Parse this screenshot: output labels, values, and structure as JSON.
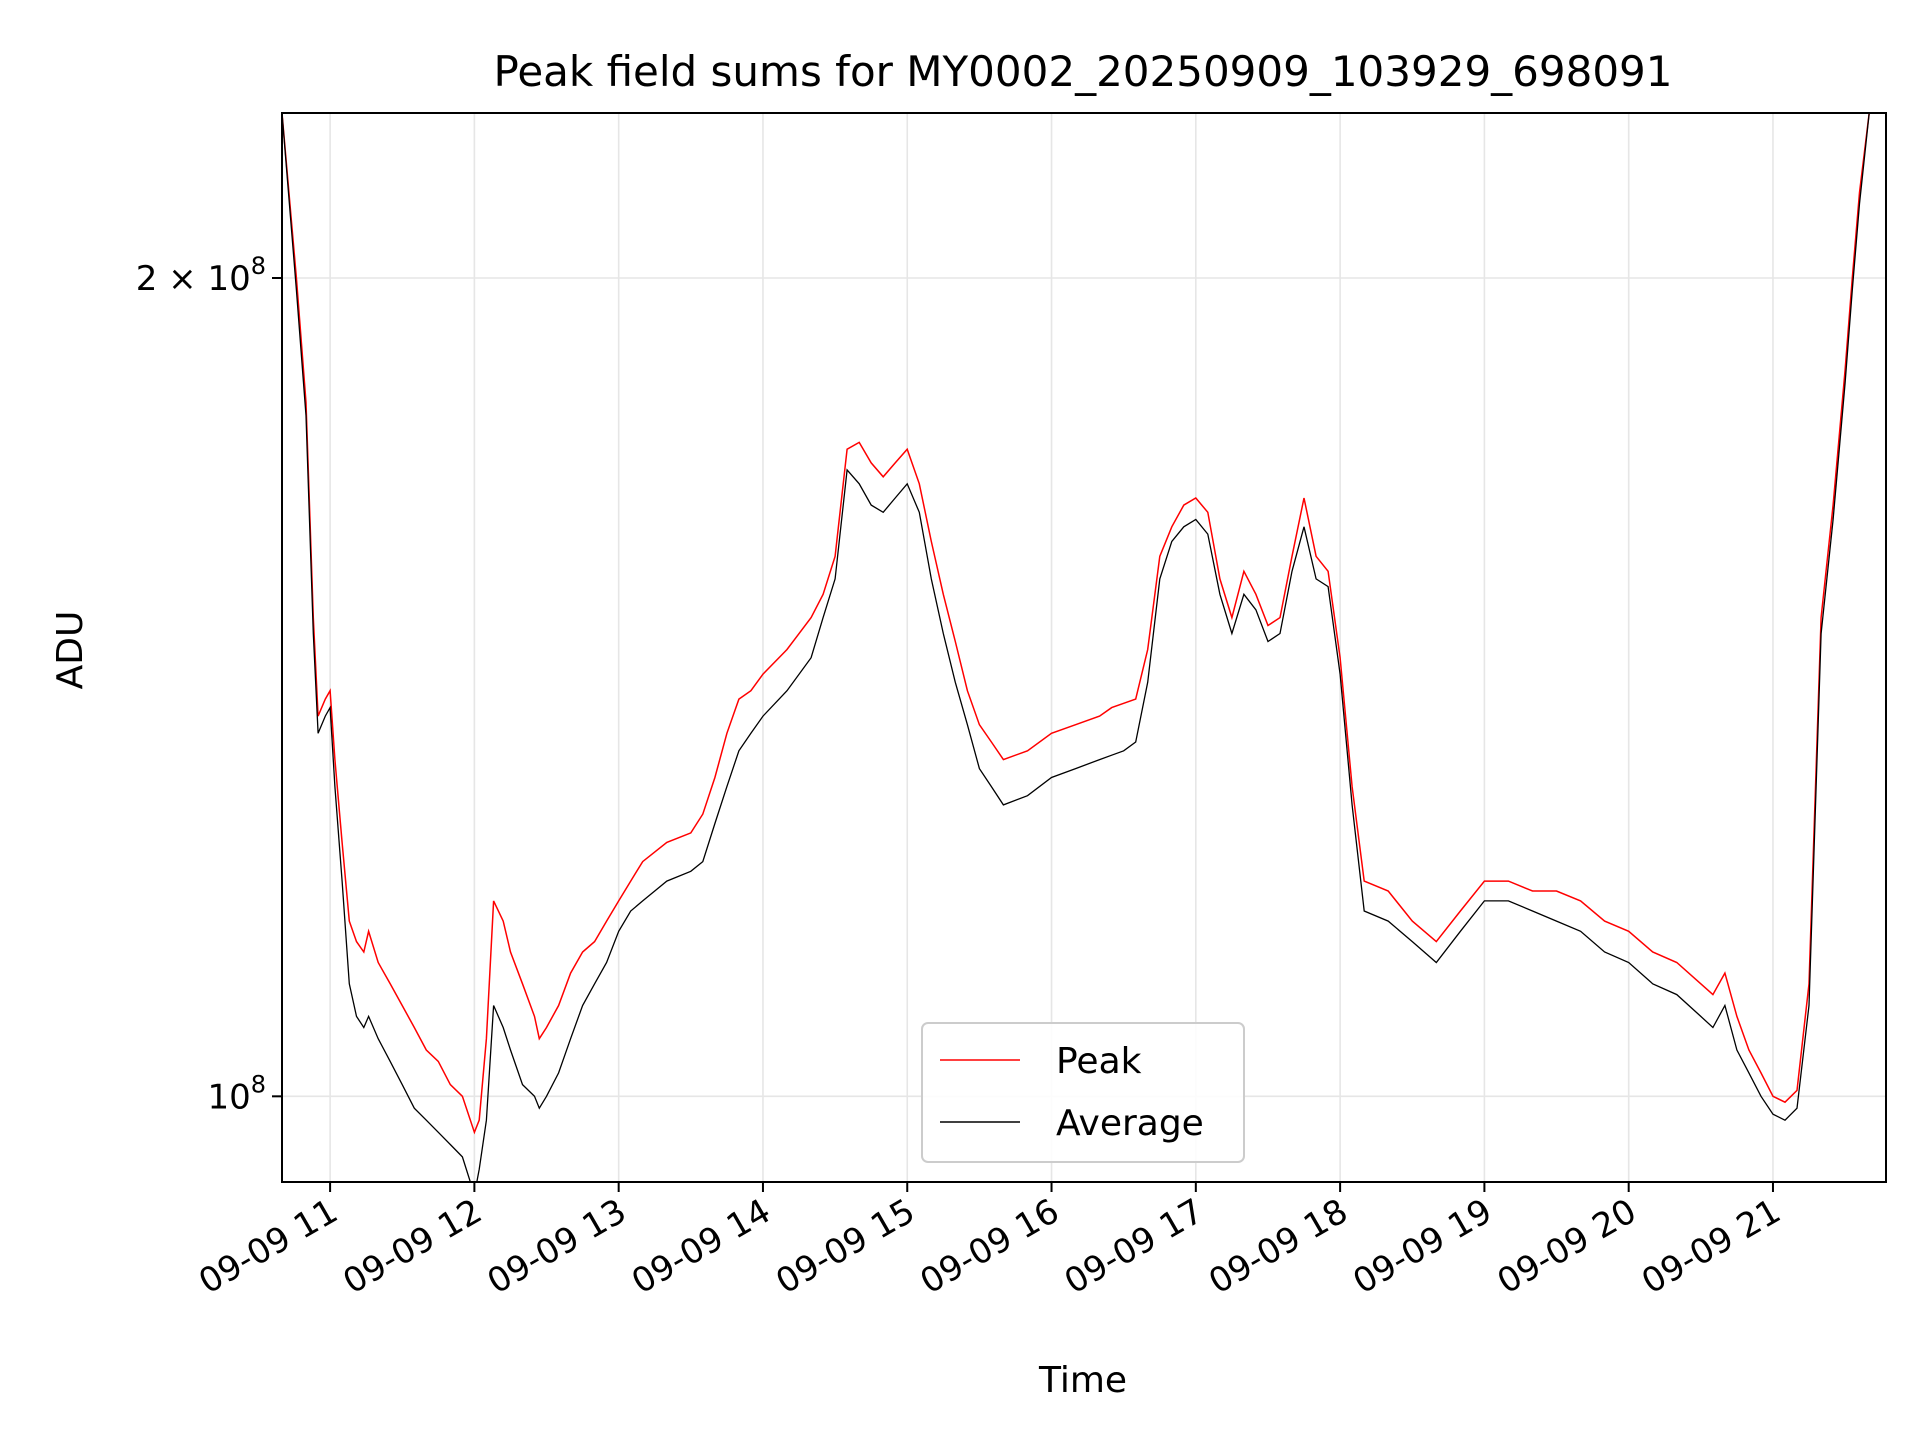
{
  "chart_data": {
    "type": "line",
    "title": "Peak field sums for MY0002_20250909_103929_698091",
    "xlabel": "Time",
    "ylabel": "ADU",
    "yscale": "log",
    "xlim": [
      "2025-09-09 10:40",
      "2025-09-09 21:47"
    ],
    "ylim": [
      93000000,
      230000000
    ],
    "x_ticks": [
      {
        "value": "2025-09-09 11:00",
        "label": "09-09 11"
      },
      {
        "value": "2025-09-09 12:00",
        "label": "09-09 12"
      },
      {
        "value": "2025-09-09 13:00",
        "label": "09-09 13"
      },
      {
        "value": "2025-09-09 14:00",
        "label": "09-09 14"
      },
      {
        "value": "2025-09-09 15:00",
        "label": "09-09 15"
      },
      {
        "value": "2025-09-09 16:00",
        "label": "09-09 16"
      },
      {
        "value": "2025-09-09 17:00",
        "label": "09-09 17"
      },
      {
        "value": "2025-09-09 18:00",
        "label": "09-09 18"
      },
      {
        "value": "2025-09-09 19:00",
        "label": "09-09 19"
      },
      {
        "value": "2025-09-09 20:00",
        "label": "09-09 20"
      },
      {
        "value": "2025-09-09 21:00",
        "label": "09-09 21"
      }
    ],
    "y_ticks": [
      {
        "value": 100000000,
        "base": "10",
        "exp": "8"
      },
      {
        "value": 200000000,
        "base": "2 × 10",
        "exp": "8"
      }
    ],
    "grid": true,
    "legend": "lower-center",
    "series": [
      {
        "name": "Peak",
        "color": "#ff0000",
        "x": [
          "2025-09-09 10:40",
          "2025-09-09 10:46",
          "2025-09-09 10:50",
          "2025-09-09 10:53",
          "2025-09-09 10:55",
          "2025-09-09 10:58",
          "2025-09-09 11:00",
          "2025-09-09 11:02",
          "2025-09-09 11:05",
          "2025-09-09 11:08",
          "2025-09-09 11:11",
          "2025-09-09 11:14",
          "2025-09-09 11:16",
          "2025-09-09 11:20",
          "2025-09-09 11:25",
          "2025-09-09 11:30",
          "2025-09-09 11:35",
          "2025-09-09 11:40",
          "2025-09-09 11:45",
          "2025-09-09 11:50",
          "2025-09-09 11:55",
          "2025-09-09 12:00",
          "2025-09-09 12:02",
          "2025-09-09 12:05",
          "2025-09-09 12:08",
          "2025-09-09 12:12",
          "2025-09-09 12:15",
          "2025-09-09 12:20",
          "2025-09-09 12:25",
          "2025-09-09 12:27",
          "2025-09-09 12:30",
          "2025-09-09 12:35",
          "2025-09-09 12:40",
          "2025-09-09 12:45",
          "2025-09-09 12:50",
          "2025-09-09 12:55",
          "2025-09-09 13:00",
          "2025-09-09 13:05",
          "2025-09-09 13:10",
          "2025-09-09 13:20",
          "2025-09-09 13:30",
          "2025-09-09 13:35",
          "2025-09-09 13:40",
          "2025-09-09 13:45",
          "2025-09-09 13:50",
          "2025-09-09 13:55",
          "2025-09-09 14:00",
          "2025-09-09 14:10",
          "2025-09-09 14:20",
          "2025-09-09 14:25",
          "2025-09-09 14:30",
          "2025-09-09 14:35",
          "2025-09-09 14:40",
          "2025-09-09 14:45",
          "2025-09-09 14:50",
          "2025-09-09 14:55",
          "2025-09-09 15:00",
          "2025-09-09 15:05",
          "2025-09-09 15:10",
          "2025-09-09 15:15",
          "2025-09-09 15:20",
          "2025-09-09 15:25",
          "2025-09-09 15:30",
          "2025-09-09 15:35",
          "2025-09-09 15:40",
          "2025-09-09 15:50",
          "2025-09-09 16:00",
          "2025-09-09 16:10",
          "2025-09-09 16:20",
          "2025-09-09 16:25",
          "2025-09-09 16:30",
          "2025-09-09 16:35",
          "2025-09-09 16:40",
          "2025-09-09 16:45",
          "2025-09-09 16:50",
          "2025-09-09 16:55",
          "2025-09-09 17:00",
          "2025-09-09 17:05",
          "2025-09-09 17:10",
          "2025-09-09 17:15",
          "2025-09-09 17:20",
          "2025-09-09 17:25",
          "2025-09-09 17:30",
          "2025-09-09 17:35",
          "2025-09-09 17:40",
          "2025-09-09 17:45",
          "2025-09-09 17:50",
          "2025-09-09 17:55",
          "2025-09-09 18:00",
          "2025-09-09 18:05",
          "2025-09-09 18:10",
          "2025-09-09 18:20",
          "2025-09-09 18:30",
          "2025-09-09 18:40",
          "2025-09-09 18:50",
          "2025-09-09 19:00",
          "2025-09-09 19:10",
          "2025-09-09 19:20",
          "2025-09-09 19:30",
          "2025-09-09 19:40",
          "2025-09-09 19:50",
          "2025-09-09 20:00",
          "2025-09-09 20:10",
          "2025-09-09 20:20",
          "2025-09-09 20:30",
          "2025-09-09 20:35",
          "2025-09-09 20:40",
          "2025-09-09 20:45",
          "2025-09-09 20:50",
          "2025-09-09 20:55",
          "2025-09-09 21:00",
          "2025-09-09 21:05",
          "2025-09-09 21:10",
          "2025-09-09 21:15",
          "2025-09-09 21:20",
          "2025-09-09 21:25",
          "2025-09-09 21:30",
          "2025-09-09 21:33",
          "2025-09-09 21:36",
          "2025-09-09 21:40",
          "2025-09-09 21:47"
        ],
        "y": [
          230000000,
          200000000,
          180000000,
          150000000,
          138000000,
          140000000,
          141000000,
          133000000,
          124000000,
          116000000,
          114000000,
          113000000,
          115000000,
          112000000,
          110000000,
          108000000,
          106000000,
          104000000,
          103000000,
          101000000,
          100000000,
          97000000,
          98000000,
          105000000,
          118000000,
          116000000,
          113000000,
          110000000,
          107000000,
          105000000,
          106000000,
          108000000,
          111000000,
          113000000,
          114000000,
          116000000,
          118000000,
          120000000,
          122000000,
          124000000,
          125000000,
          127000000,
          131000000,
          136000000,
          140000000,
          141000000,
          143000000,
          146000000,
          150000000,
          153000000,
          158000000,
          173000000,
          174000000,
          171000000,
          169000000,
          171000000,
          173000000,
          168000000,
          160000000,
          153000000,
          147000000,
          141000000,
          137000000,
          135000000,
          133000000,
          134000000,
          136000000,
          137000000,
          138000000,
          139000000,
          139500000,
          140000000,
          146000000,
          158000000,
          162000000,
          165000000,
          166000000,
          164000000,
          155000000,
          150000000,
          156000000,
          153000000,
          149000000,
          150000000,
          158000000,
          166000000,
          158000000,
          156000000,
          145000000,
          130000000,
          120000000,
          119000000,
          116000000,
          114000000,
          117000000,
          120000000,
          120000000,
          119000000,
          119000000,
          118000000,
          116000000,
          115000000,
          113000000,
          112000000,
          110000000,
          109000000,
          111000000,
          107000000,
          104000000,
          102000000,
          100000000,
          99500000,
          100500000,
          110000000,
          150000000,
          165000000,
          185000000,
          200000000,
          215000000,
          230000000,
          230000000
        ]
      },
      {
        "name": "Average",
        "color": "#000000",
        "x": [
          "2025-09-09 10:40",
          "2025-09-09 10:46",
          "2025-09-09 10:50",
          "2025-09-09 10:53",
          "2025-09-09 10:55",
          "2025-09-09 10:58",
          "2025-09-09 11:00",
          "2025-09-09 11:02",
          "2025-09-09 11:05",
          "2025-09-09 11:08",
          "2025-09-09 11:11",
          "2025-09-09 11:14",
          "2025-09-09 11:16",
          "2025-09-09 11:20",
          "2025-09-09 11:25",
          "2025-09-09 11:30",
          "2025-09-09 11:35",
          "2025-09-09 11:40",
          "2025-09-09 11:45",
          "2025-09-09 11:50",
          "2025-09-09 11:55",
          "2025-09-09 12:00",
          "2025-09-09 12:02",
          "2025-09-09 12:05",
          "2025-09-09 12:08",
          "2025-09-09 12:12",
          "2025-09-09 12:15",
          "2025-09-09 12:20",
          "2025-09-09 12:25",
          "2025-09-09 12:27",
          "2025-09-09 12:30",
          "2025-09-09 12:35",
          "2025-09-09 12:40",
          "2025-09-09 12:45",
          "2025-09-09 12:50",
          "2025-09-09 12:55",
          "2025-09-09 13:00",
          "2025-09-09 13:05",
          "2025-09-09 13:10",
          "2025-09-09 13:20",
          "2025-09-09 13:30",
          "2025-09-09 13:35",
          "2025-09-09 13:40",
          "2025-09-09 13:45",
          "2025-09-09 13:50",
          "2025-09-09 13:55",
          "2025-09-09 14:00",
          "2025-09-09 14:10",
          "2025-09-09 14:20",
          "2025-09-09 14:25",
          "2025-09-09 14:30",
          "2025-09-09 14:35",
          "2025-09-09 14:40",
          "2025-09-09 14:45",
          "2025-09-09 14:50",
          "2025-09-09 14:55",
          "2025-09-09 15:00",
          "2025-09-09 15:05",
          "2025-09-09 15:10",
          "2025-09-09 15:15",
          "2025-09-09 15:20",
          "2025-09-09 15:25",
          "2025-09-09 15:30",
          "2025-09-09 15:35",
          "2025-09-09 15:40",
          "2025-09-09 15:50",
          "2025-09-09 16:00",
          "2025-09-09 16:10",
          "2025-09-09 16:20",
          "2025-09-09 16:25",
          "2025-09-09 16:30",
          "2025-09-09 16:35",
          "2025-09-09 16:40",
          "2025-09-09 16:45",
          "2025-09-09 16:50",
          "2025-09-09 16:55",
          "2025-09-09 17:00",
          "2025-09-09 17:05",
          "2025-09-09 17:10",
          "2025-09-09 17:15",
          "2025-09-09 17:20",
          "2025-09-09 17:25",
          "2025-09-09 17:30",
          "2025-09-09 17:35",
          "2025-09-09 17:40",
          "2025-09-09 17:45",
          "2025-09-09 17:50",
          "2025-09-09 17:55",
          "2025-09-09 18:00",
          "2025-09-09 18:05",
          "2025-09-09 18:10",
          "2025-09-09 18:20",
          "2025-09-09 18:30",
          "2025-09-09 18:40",
          "2025-09-09 18:50",
          "2025-09-09 19:00",
          "2025-09-09 19:10",
          "2025-09-09 19:20",
          "2025-09-09 19:30",
          "2025-09-09 19:40",
          "2025-09-09 19:50",
          "2025-09-09 20:00",
          "2025-09-09 20:10",
          "2025-09-09 20:20",
          "2025-09-09 20:30",
          "2025-09-09 20:35",
          "2025-09-09 20:40",
          "2025-09-09 20:45",
          "2025-09-09 20:50",
          "2025-09-09 20:55",
          "2025-09-09 21:00",
          "2025-09-09 21:05",
          "2025-09-09 21:10",
          "2025-09-09 21:15",
          "2025-09-09 21:20",
          "2025-09-09 21:25",
          "2025-09-09 21:30",
          "2025-09-09 21:33",
          "2025-09-09 21:36",
          "2025-09-09 21:40",
          "2025-09-09 21:47"
        ],
        "y": [
          230000000,
          198000000,
          178000000,
          148000000,
          136000000,
          138000000,
          139000000,
          130000000,
          120000000,
          110000000,
          107000000,
          106000000,
          107000000,
          105000000,
          103000000,
          101000000,
          99000000,
          98000000,
          97000000,
          96000000,
          95000000,
          92000000,
          94000000,
          98000000,
          108000000,
          106000000,
          104000000,
          101000000,
          100000000,
          99000000,
          100000000,
          102000000,
          105000000,
          108000000,
          110000000,
          112000000,
          115000000,
          117000000,
          118000000,
          120000000,
          121000000,
          122000000,
          126000000,
          130000000,
          134000000,
          136000000,
          138000000,
          141000000,
          145000000,
          150000000,
          155000000,
          170000000,
          168000000,
          165000000,
          164000000,
          166000000,
          168000000,
          164000000,
          155000000,
          148000000,
          142000000,
          137000000,
          132000000,
          130000000,
          128000000,
          129000000,
          131000000,
          132000000,
          133000000,
          133500000,
          134000000,
          135000000,
          142000000,
          155000000,
          160000000,
          162000000,
          163000000,
          161000000,
          153000000,
          148000000,
          153000000,
          151000000,
          147000000,
          148000000,
          156000000,
          162000000,
          155000000,
          154000000,
          143000000,
          128000000,
          117000000,
          116000000,
          114000000,
          112000000,
          115000000,
          118000000,
          118000000,
          117000000,
          116000000,
          115000000,
          113000000,
          112000000,
          110000000,
          109000000,
          107000000,
          106000000,
          108000000,
          104000000,
          102000000,
          100000000,
          98500000,
          98000000,
          99000000,
          108000000,
          148000000,
          163000000,
          183000000,
          198000000,
          213000000,
          230000000,
          230000000
        ]
      }
    ]
  }
}
